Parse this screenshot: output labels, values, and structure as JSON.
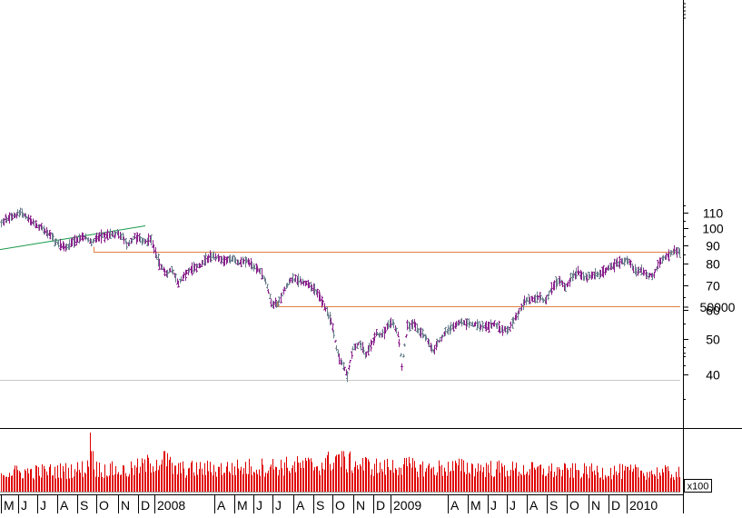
{
  "chart_data": {
    "type": "ohlc",
    "scale": "log",
    "price_axis": {
      "ticks": [
        40,
        50,
        60,
        70,
        80,
        90,
        100,
        110
      ],
      "tick_labels": [
        "40",
        "50",
        "60",
        "70",
        "80",
        "90",
        "100",
        "110"
      ],
      "ylim": [
        36,
        121
      ]
    },
    "volume_axis": {
      "ticks": [
        50000
      ],
      "tick_labels": [
        "50000"
      ],
      "unit_label": "x100"
    },
    "x_axis": {
      "month_labels": [
        "M",
        "J",
        "J",
        "A",
        "S",
        "O",
        "N",
        "D",
        "2008",
        "A",
        "M",
        "J",
        "J",
        "A",
        "S",
        "O",
        "N",
        "D",
        "2009",
        "A",
        "M",
        "J",
        "J",
        "A",
        "S",
        "O",
        "N",
        "D",
        "2010"
      ]
    },
    "price_path": [
      [
        0,
        103
      ],
      [
        12,
        108
      ],
      [
        22,
        110
      ],
      [
        30,
        106
      ],
      [
        38,
        103
      ],
      [
        45,
        100
      ],
      [
        55,
        96
      ],
      [
        60,
        92
      ],
      [
        66,
        90
      ],
      [
        72,
        88
      ],
      [
        80,
        92
      ],
      [
        90,
        95
      ],
      [
        100,
        92
      ],
      [
        110,
        95
      ],
      [
        120,
        96
      ],
      [
        128,
        97
      ],
      [
        135,
        94
      ],
      [
        140,
        90
      ],
      [
        148,
        95
      ],
      [
        155,
        93
      ],
      [
        160,
        92
      ],
      [
        165,
        94
      ],
      [
        170,
        87
      ],
      [
        175,
        80
      ],
      [
        182,
        75
      ],
      [
        188,
        77
      ],
      [
        196,
        71
      ],
      [
        205,
        76
      ],
      [
        212,
        78
      ],
      [
        220,
        79
      ],
      [
        230,
        84
      ],
      [
        240,
        83
      ],
      [
        246,
        81
      ],
      [
        255,
        83
      ],
      [
        262,
        80
      ],
      [
        270,
        82
      ],
      [
        278,
        79
      ],
      [
        286,
        76
      ],
      [
        292,
        72
      ],
      [
        298,
        63
      ],
      [
        304,
        62
      ],
      [
        310,
        66
      ],
      [
        318,
        72
      ],
      [
        326,
        73
      ],
      [
        334,
        71
      ],
      [
        342,
        70
      ],
      [
        350,
        66
      ],
      [
        358,
        60
      ],
      [
        364,
        56
      ],
      [
        368,
        50
      ],
      [
        372,
        45
      ],
      [
        378,
        42
      ],
      [
        382,
        40
      ],
      [
        388,
        47
      ],
      [
        396,
        49
      ],
      [
        402,
        45
      ],
      [
        408,
        48
      ],
      [
        414,
        52
      ],
      [
        420,
        51
      ],
      [
        426,
        54
      ],
      [
        432,
        56
      ],
      [
        438,
        51
      ],
      [
        442,
        42
      ],
      [
        448,
        54
      ],
      [
        455,
        55
      ],
      [
        462,
        52
      ],
      [
        470,
        50
      ],
      [
        476,
        46
      ],
      [
        482,
        49
      ],
      [
        490,
        52
      ],
      [
        498,
        54
      ],
      [
        506,
        56
      ],
      [
        512,
        55
      ],
      [
        520,
        55
      ],
      [
        528,
        54
      ],
      [
        536,
        54
      ],
      [
        544,
        55
      ],
      [
        552,
        53
      ],
      [
        560,
        53
      ],
      [
        566,
        57
      ],
      [
        572,
        60
      ],
      [
        578,
        64
      ],
      [
        586,
        64
      ],
      [
        594,
        65
      ],
      [
        600,
        63
      ],
      [
        608,
        70
      ],
      [
        616,
        72
      ],
      [
        622,
        69
      ],
      [
        630,
        74
      ],
      [
        636,
        76
      ],
      [
        642,
        73
      ],
      [
        650,
        74
      ],
      [
        658,
        75
      ],
      [
        666,
        77
      ],
      [
        674,
        79
      ],
      [
        680,
        80
      ],
      [
        688,
        82
      ],
      [
        694,
        80
      ],
      [
        700,
        76
      ],
      [
        706,
        77
      ],
      [
        712,
        75
      ],
      [
        718,
        74
      ],
      [
        724,
        79
      ],
      [
        730,
        83
      ],
      [
        736,
        85
      ],
      [
        742,
        87
      ],
      [
        749,
        86
      ]
    ],
    "volume_path": [
      [
        0,
        5200
      ],
      [
        40,
        5400
      ],
      [
        80,
        5800
      ],
      [
        96,
        6500
      ],
      [
        99,
        16000
      ],
      [
        104,
        6200
      ],
      [
        140,
        5600
      ],
      [
        182,
        9000
      ],
      [
        190,
        6000
      ],
      [
        240,
        6200
      ],
      [
        300,
        6800
      ],
      [
        355,
        7200
      ],
      [
        372,
        9500
      ],
      [
        380,
        8000
      ],
      [
        420,
        6400
      ],
      [
        440,
        7000
      ],
      [
        470,
        6200
      ],
      [
        510,
        6600
      ],
      [
        560,
        6000
      ],
      [
        620,
        5600
      ],
      [
        680,
        5400
      ],
      [
        720,
        5200
      ],
      [
        749,
        5000
      ]
    ],
    "annotations": [
      {
        "type": "trendline",
        "color": "#1a9a4a",
        "points": [
          [
            0,
            87.5
          ],
          [
            160,
            101.5
          ]
        ]
      },
      {
        "type": "hline",
        "color": "#e08040",
        "value": 86.3,
        "from_x": 103,
        "to_x": 749
      },
      {
        "type": "hline",
        "color": "#e08040",
        "value": 61.3,
        "from_x": 305,
        "to_x": 749
      },
      {
        "type": "hline",
        "color": "#c8c8c8",
        "value": 38.8,
        "from_x": 0,
        "to_x": 749
      }
    ],
    "colors": {
      "up_bar": "#6a7f8c",
      "down_bar": "#8a1e8c",
      "volume": "#e00000",
      "axis": "#000000"
    },
    "grid": false
  }
}
